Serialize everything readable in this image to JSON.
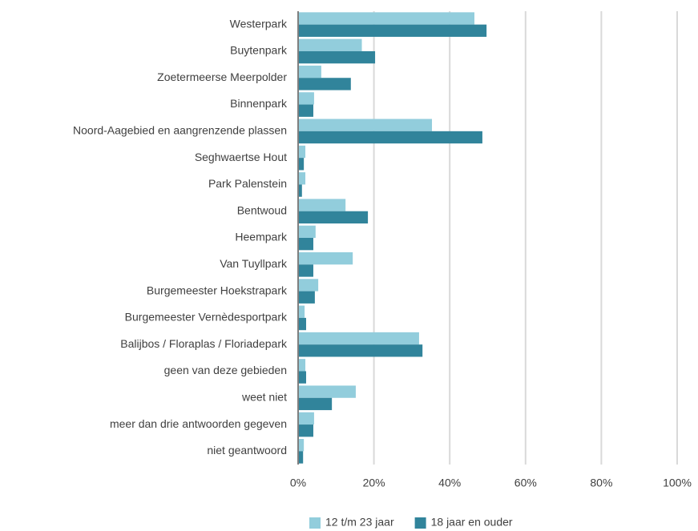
{
  "chart_data": {
    "type": "hbar",
    "categories": [
      "Westerpark",
      "Buytenpark",
      "Zoetermeerse Meerpolder",
      "Binnenpark",
      "Noord-Aagebied en aangrenzende plassen",
      "Seghwaertse Hout",
      "Park Palenstein",
      "Bentwoud",
      "Heempark",
      "Van Tuyllpark",
      "Burgemeester Hoekstrapark",
      "Burgemeester Vernèdesportpark",
      "Balijbos / Floraplas / Floriadepark",
      "geen van deze gebieden",
      "weet niet",
      "meer dan drie antwoorden gegeven",
      "niet geantwoord"
    ],
    "series": [
      {
        "name": "12 t/m 23 jaar",
        "color": "#92cddc",
        "values": [
          46.3,
          16.6,
          5.9,
          4.0,
          35.1,
          1.7,
          1.7,
          12.3,
          4.4,
          14.2,
          5.1,
          1.5,
          31.7,
          1.7,
          15.0,
          4.0,
          1.3
        ]
      },
      {
        "name": "18 jaar en ouder",
        "color": "#31849b",
        "values": [
          49.5,
          20.1,
          13.7,
          3.8,
          48.4,
          1.3,
          0.8,
          18.2,
          3.8,
          3.8,
          4.2,
          1.9,
          32.6,
          1.9,
          8.7,
          3.8,
          1.1
        ]
      }
    ],
    "xlim": [
      0,
      100
    ],
    "xticks": [
      {
        "value": 0,
        "label": "0%"
      },
      {
        "value": 20,
        "label": "20%"
      },
      {
        "value": 40,
        "label": "40%"
      },
      {
        "value": 60,
        "label": "60%"
      },
      {
        "value": 80,
        "label": "80%"
      },
      {
        "value": 100,
        "label": "100%"
      }
    ],
    "grid": true,
    "legend": "bottom"
  }
}
